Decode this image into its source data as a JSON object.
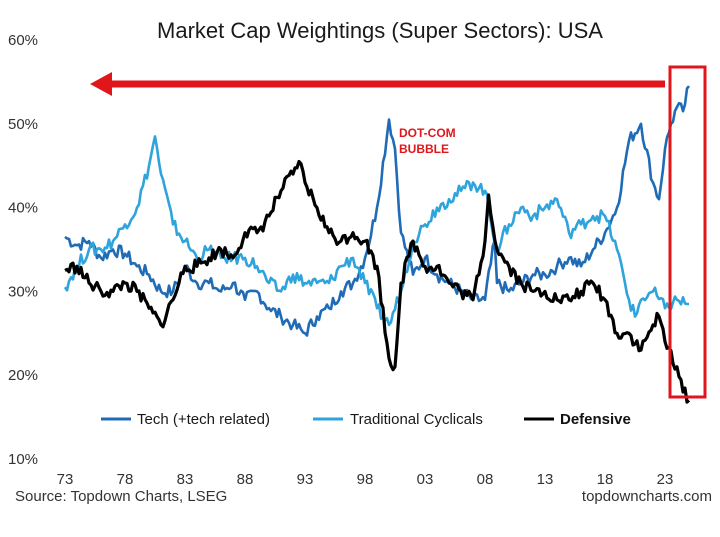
{
  "chart_data": {
    "type": "line",
    "title": "Market Cap Weightings (Super Sectors): USA",
    "xlabel": "",
    "ylabel": "",
    "x_tick_labels": [
      "73",
      "78",
      "83",
      "88",
      "93",
      "98",
      "03",
      "08",
      "13",
      "18",
      "23"
    ],
    "x_tick_years": [
      1973,
      1978,
      1983,
      1988,
      1993,
      1998,
      2003,
      2008,
      2013,
      2018,
      2023
    ],
    "xlim": [
      1973,
      2025
    ],
    "y_tick_labels": [
      "10%",
      "20%",
      "30%",
      "40%",
      "50%",
      "60%"
    ],
    "ylim": [
      10,
      60
    ],
    "y_ticks": [
      10,
      20,
      30,
      40,
      50,
      60
    ],
    "unit": "percent",
    "annotation": [
      "DOT-COM",
      "BUBBLE"
    ],
    "highlight": "last observations boxed in red; red arrow pointing left toward 0 history",
    "series": [
      {
        "name": "Tech (+tech related)",
        "color": "#1f6bb5",
        "points": [
          [
            1973,
            36.5
          ],
          [
            1974,
            35.5
          ],
          [
            1975,
            36
          ],
          [
            1976,
            34
          ],
          [
            1977,
            35
          ],
          [
            1978,
            34.5
          ],
          [
            1979,
            33
          ],
          [
            1980,
            32
          ],
          [
            1981,
            30
          ],
          [
            1982,
            30
          ],
          [
            1983,
            33
          ],
          [
            1984,
            31
          ],
          [
            1985,
            31
          ],
          [
            1986,
            30
          ],
          [
            1987,
            31
          ],
          [
            1988,
            29
          ],
          [
            1989,
            30
          ],
          [
            1990,
            28
          ],
          [
            1991,
            27
          ],
          [
            1992,
            26
          ],
          [
            1993,
            25
          ],
          [
            1994,
            27
          ],
          [
            1995,
            28
          ],
          [
            1996,
            30
          ],
          [
            1997,
            31
          ],
          [
            1998,
            34
          ],
          [
            1999,
            40
          ],
          [
            2000,
            50.5
          ],
          [
            2000.5,
            47
          ],
          [
            2001,
            37
          ],
          [
            2002,
            32
          ],
          [
            2003,
            34
          ],
          [
            2004,
            32
          ],
          [
            2005,
            31
          ],
          [
            2006,
            30
          ],
          [
            2007,
            29
          ],
          [
            2008,
            29
          ],
          [
            2008.8,
            36
          ],
          [
            2009,
            31
          ],
          [
            2010,
            30
          ],
          [
            2011,
            31
          ],
          [
            2012,
            32
          ],
          [
            2013,
            32
          ],
          [
            2014,
            33
          ],
          [
            2015,
            34
          ],
          [
            2016,
            33
          ],
          [
            2017,
            35
          ],
          [
            2018,
            37
          ],
          [
            2019,
            40
          ],
          [
            2020,
            48
          ],
          [
            2021,
            50
          ],
          [
            2022,
            43
          ],
          [
            2022.5,
            41
          ],
          [
            2023,
            47
          ],
          [
            2023.5,
            50
          ],
          [
            2024,
            52
          ],
          [
            2024.5,
            51.5
          ],
          [
            2025,
            54.5
          ]
        ]
      },
      {
        "name": "Traditional Cyclicals",
        "color": "#2ea3dc",
        "points": [
          [
            1973,
            30.5
          ],
          [
            1974,
            33
          ],
          [
            1975,
            35
          ],
          [
            1976,
            35
          ],
          [
            1977,
            36
          ],
          [
            1978,
            38
          ],
          [
            1979,
            40
          ],
          [
            1980,
            45
          ],
          [
            1980.5,
            48.5
          ],
          [
            1981,
            44
          ],
          [
            1982,
            38
          ],
          [
            1983,
            36
          ],
          [
            1984,
            34
          ],
          [
            1985,
            35
          ],
          [
            1986,
            34
          ],
          [
            1987,
            34
          ],
          [
            1988,
            34
          ],
          [
            1989,
            33
          ],
          [
            1990,
            31
          ],
          [
            1991,
            30
          ],
          [
            1992,
            32
          ],
          [
            1993,
            31
          ],
          [
            1994,
            31
          ],
          [
            1995,
            31
          ],
          [
            1996,
            33
          ],
          [
            1997,
            34
          ],
          [
            1998,
            31
          ],
          [
            1999,
            28
          ],
          [
            2000,
            26
          ],
          [
            2001,
            30
          ],
          [
            2002,
            36
          ],
          [
            2003,
            38
          ],
          [
            2004,
            40
          ],
          [
            2005,
            41
          ],
          [
            2006,
            42
          ],
          [
            2007,
            43
          ],
          [
            2008,
            42
          ],
          [
            2009,
            35
          ],
          [
            2010,
            38
          ],
          [
            2011,
            40
          ],
          [
            2012,
            39
          ],
          [
            2013,
            40
          ],
          [
            2014,
            41
          ],
          [
            2015,
            37
          ],
          [
            2016,
            38
          ],
          [
            2017,
            39
          ],
          [
            2018,
            39
          ],
          [
            2019,
            35
          ],
          [
            2020,
            29
          ],
          [
            2020.5,
            27
          ],
          [
            2021,
            29
          ],
          [
            2022,
            30
          ],
          [
            2023,
            28
          ],
          [
            2024,
            29
          ],
          [
            2025,
            28.5
          ]
        ]
      },
      {
        "name": "Defensive",
        "color": "#000000",
        "points": [
          [
            1973,
            32.5
          ],
          [
            1974,
            33
          ],
          [
            1975,
            31
          ],
          [
            1976,
            30
          ],
          [
            1977,
            30
          ],
          [
            1978,
            31
          ],
          [
            1979,
            30
          ],
          [
            1980,
            28
          ],
          [
            1981,
            26
          ],
          [
            1982,
            29
          ],
          [
            1983,
            33
          ],
          [
            1984,
            33
          ],
          [
            1985,
            34
          ],
          [
            1986,
            35
          ],
          [
            1987,
            34
          ],
          [
            1988,
            37
          ],
          [
            1989,
            37
          ],
          [
            1990,
            39
          ],
          [
            1991,
            42
          ],
          [
            1992,
            44
          ],
          [
            1992.5,
            45.5
          ],
          [
            1993,
            43
          ],
          [
            1994,
            40
          ],
          [
            1995,
            37
          ],
          [
            1996,
            36
          ],
          [
            1997,
            37
          ],
          [
            1998,
            36
          ],
          [
            1999,
            33
          ],
          [
            2000,
            22
          ],
          [
            2000.5,
            21
          ],
          [
            2001,
            31
          ],
          [
            2002,
            36
          ],
          [
            2003,
            33
          ],
          [
            2004,
            33
          ],
          [
            2005,
            31
          ],
          [
            2006,
            30
          ],
          [
            2007,
            29
          ],
          [
            2008,
            36
          ],
          [
            2008.3,
            41.5
          ],
          [
            2009,
            35
          ],
          [
            2010,
            33
          ],
          [
            2011,
            31
          ],
          [
            2012,
            30
          ],
          [
            2013,
            30
          ],
          [
            2014,
            29
          ],
          [
            2015,
            29
          ],
          [
            2016,
            30
          ],
          [
            2017,
            31
          ],
          [
            2018,
            29
          ],
          [
            2019,
            25
          ],
          [
            2020,
            25
          ],
          [
            2021,
            23
          ],
          [
            2022,
            26
          ],
          [
            2022.5,
            27
          ],
          [
            2023,
            24
          ],
          [
            2024,
            21
          ],
          [
            2024.5,
            18
          ],
          [
            2025,
            17
          ]
        ]
      }
    ],
    "source": "Source: Topdown Charts, LSEG",
    "watermark": "topdowncharts.com"
  }
}
